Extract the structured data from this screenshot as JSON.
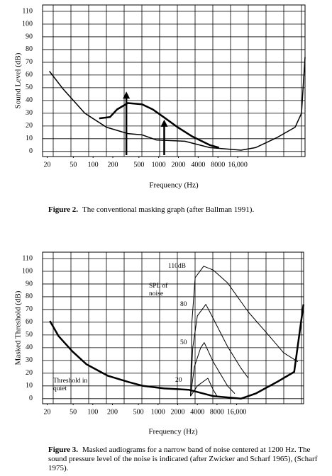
{
  "chart_data": [
    {
      "type": "line",
      "xlabel": "Frequency (Hz)",
      "ylabel": "Sound Level (dB)",
      "caption_label": "Figure 2.",
      "caption": "The conventional masking graph (after Ballman 1991).",
      "xscale": "log",
      "xlim": [
        17,
        170000
      ],
      "ylim": [
        -4,
        115
      ],
      "xticks": [
        20,
        50,
        100,
        200,
        500,
        1000,
        2000,
        4000,
        8000,
        {
          "value": 16000,
          "label": "16,000"
        }
      ],
      "yticks": [
        0,
        10,
        20,
        30,
        40,
        50,
        60,
        70,
        80,
        90,
        100,
        110
      ],
      "grid": true,
      "series": [
        {
          "color": "#000000",
          "linewidth": 1.5,
          "x": [
            21.6,
            35,
            75,
            160,
            340,
            560,
            920,
            2500,
            6000,
            18000,
            30000,
            64000,
            120000,
            150000,
            170000
          ],
          "values": [
            63,
            49,
            30,
            19,
            14,
            13,
            9,
            8,
            3,
            1,
            3,
            11,
            19,
            30,
            74
          ]
        },
        {
          "color": "#000000",
          "linewidth": 2.5,
          "x": [
            124,
            181,
            232,
            339,
            557,
            813,
            1190,
            1945,
            3180,
            6000,
            8300
          ],
          "values": [
            26,
            27,
            33,
            38,
            37,
            33,
            27,
            19,
            12,
            5,
            3
          ]
        }
      ],
      "maskers": {
        "color": "#000000",
        "x": [
          322,
          1214
        ],
        "values": [
          47,
          25
        ]
      }
    },
    {
      "type": "line",
      "xlabel": "Frequency (Hz)",
      "ylabel": "Masked Threshold (dB)",
      "caption_label": "Figure 3.",
      "caption": "Masked audiograms for a narrow band of noise centered at 1200 Hz.  The sound pressure level of the noise is indicated (after Zwicker and Scharf 1965), (Scharf 1975).",
      "xscale": "log",
      "xlim": [
        17,
        170000
      ],
      "ylim": [
        -4,
        115
      ],
      "xticks": [
        20,
        50,
        100,
        200,
        500,
        1000,
        2000,
        4000,
        8000,
        {
          "value": 16000,
          "label": "16,000"
        }
      ],
      "yticks": [
        0,
        10,
        20,
        30,
        40,
        50,
        60,
        70,
        80,
        90,
        100,
        110
      ],
      "grid": true,
      "annotations": [
        "110dB",
        "SPL of",
        "noise",
        "80",
        "50",
        "20",
        "Threshold in",
        "quiet"
      ],
      "series": [
        {
          "color": "#000000",
          "linewidth": 2.5,
          "x": [
            22,
            30,
            49,
            80,
            169,
            357,
            589,
            1240,
            2940,
            7000,
            18600,
            31300,
            66000,
            122000,
            169000
          ],
          "values": [
            61,
            49,
            37,
            27,
            18,
            13,
            10,
            8,
            7,
            2,
            0,
            4,
            13,
            21,
            74
          ]
        },
        {
          "color": "#000000",
          "linewidth": 1,
          "x": [
            3150,
            3300,
            3700,
            5000,
            7000,
            11600,
            24200,
            51000,
            84000,
            139000
          ],
          "values": [
            2,
            60,
            95,
            104,
            101,
            91,
            68,
            49,
            36,
            29
          ]
        },
        {
          "color": "#000000",
          "linewidth": 1,
          "x": [
            3150,
            3400,
            4000,
            5400,
            7000,
            11600,
            18600,
            24200
          ],
          "values": [
            2,
            40,
            65,
            74,
            63,
            41,
            24,
            16
          ]
        },
        {
          "color": "#000000",
          "linewidth": 1,
          "x": [
            3150,
            3600,
            4500,
            5100,
            7000,
            11600,
            15000
          ],
          "values": [
            2,
            25,
            40,
            44,
            29,
            10,
            4
          ]
        },
        {
          "color": "#000000",
          "linewidth": 1,
          "x": [
            3150,
            4000,
            5800,
            7000,
            8000
          ],
          "values": [
            2,
            10,
            16,
            7,
            2
          ]
        }
      ]
    }
  ]
}
